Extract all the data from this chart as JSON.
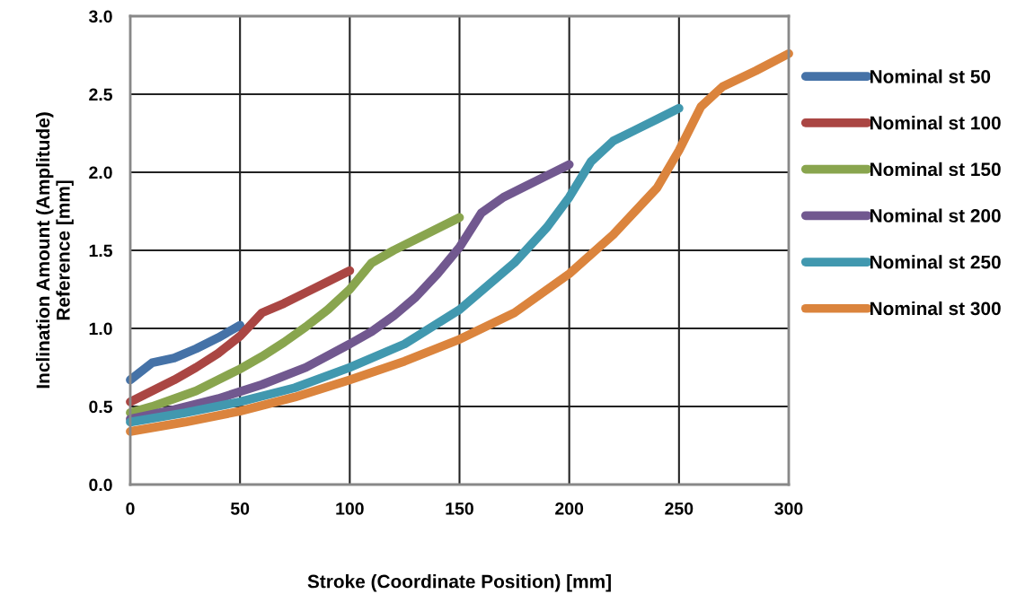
{
  "chart_data": {
    "type": "line",
    "xlabel": "Stroke (Coordinate Position) [mm]",
    "ylabel": "Inclination Amount (Amplitude)\nReference [mm]",
    "xlim": [
      0,
      300
    ],
    "xticks": [
      0,
      50,
      100,
      150,
      200,
      250,
      300
    ],
    "ylim": [
      0,
      3.0
    ],
    "yticks": [
      {
        "value": 0,
        "label": "0.0"
      },
      {
        "value": 0.5,
        "label": "0.5"
      },
      {
        "value": 1.0,
        "label": "1.0"
      },
      {
        "value": 1.5,
        "label": "1.5"
      },
      {
        "value": 2.0,
        "label": "2.0"
      },
      {
        "value": 2.5,
        "label": "2.5"
      },
      {
        "value": 3.0,
        "label": "3.0"
      }
    ],
    "grid": true,
    "legend": "right",
    "marker": "none",
    "line_style": "solid",
    "series": [
      {
        "name": "Nominal st 50",
        "color": "#4572a7",
        "x": [
          0,
          10,
          20,
          30,
          40,
          50
        ],
        "values": [
          0.67,
          0.78,
          0.81,
          0.87,
          0.94,
          1.02
        ]
      },
      {
        "name": "Nominal st 100",
        "color": "#aa4643",
        "x": [
          0,
          10,
          20,
          30,
          40,
          50,
          60,
          70,
          80,
          90,
          100
        ],
        "values": [
          0.53,
          0.6,
          0.67,
          0.75,
          0.84,
          0.95,
          1.1,
          1.16,
          1.23,
          1.3,
          1.37
        ]
      },
      {
        "name": "Nominal st 150",
        "color": "#89a54e",
        "x": [
          0,
          10,
          20,
          30,
          40,
          50,
          60,
          70,
          80,
          90,
          100,
          110,
          120,
          130,
          140,
          150
        ],
        "values": [
          0.46,
          0.5,
          0.55,
          0.6,
          0.67,
          0.74,
          0.82,
          0.91,
          1.01,
          1.12,
          1.25,
          1.42,
          1.5,
          1.57,
          1.64,
          1.71
        ]
      },
      {
        "name": "Nominal st 200",
        "color": "#71588f",
        "x": [
          0,
          20,
          40,
          60,
          80,
          100,
          110,
          120,
          130,
          140,
          150,
          160,
          170,
          180,
          190,
          200
        ],
        "values": [
          0.42,
          0.48,
          0.55,
          0.64,
          0.75,
          0.9,
          0.98,
          1.08,
          1.2,
          1.35,
          1.52,
          1.74,
          1.84,
          1.91,
          1.98,
          2.05
        ]
      },
      {
        "name": "Nominal st 250",
        "color": "#4198af",
        "x": [
          0,
          25,
          50,
          75,
          100,
          125,
          150,
          175,
          190,
          200,
          210,
          220,
          230,
          240,
          250
        ],
        "values": [
          0.4,
          0.46,
          0.53,
          0.62,
          0.75,
          0.9,
          1.12,
          1.42,
          1.65,
          1.84,
          2.07,
          2.2,
          2.27,
          2.34,
          2.41
        ]
      },
      {
        "name": "Nominal st 300",
        "color": "#db843d",
        "x": [
          0,
          25,
          50,
          75,
          100,
          125,
          150,
          175,
          200,
          220,
          240,
          250,
          260,
          270,
          285,
          300
        ],
        "values": [
          0.34,
          0.4,
          0.47,
          0.56,
          0.67,
          0.79,
          0.93,
          1.1,
          1.35,
          1.6,
          1.9,
          2.14,
          2.42,
          2.55,
          2.65,
          2.76
        ]
      }
    ]
  }
}
